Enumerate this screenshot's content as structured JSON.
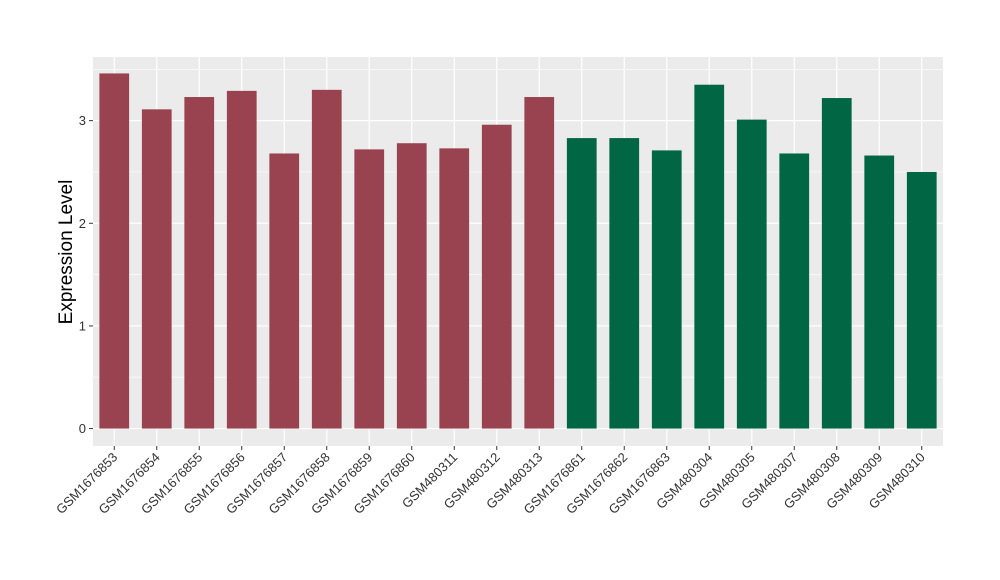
{
  "chart_data": {
    "type": "bar",
    "title": "",
    "xlabel": "",
    "ylabel": "Expression Level",
    "ylim": [
      -0.17,
      3.62
    ],
    "yticks": [
      0,
      1,
      2,
      3
    ],
    "grid": true,
    "categories": [
      "GSM1676853",
      "GSM1676854",
      "GSM1676855",
      "GSM1676856",
      "GSM1676857",
      "GSM1676858",
      "GSM1676859",
      "GSM1676860",
      "GSM480311",
      "GSM480312",
      "GSM480313",
      "GSM1676861",
      "GSM1676862",
      "GSM1676863",
      "GSM480304",
      "GSM480305",
      "GSM480307",
      "GSM480308",
      "GSM480309",
      "GSM480310"
    ],
    "values": [
      3.46,
      3.11,
      3.23,
      3.29,
      2.68,
      3.3,
      2.72,
      2.78,
      2.73,
      2.96,
      3.23,
      2.83,
      2.83,
      2.71,
      3.35,
      3.01,
      2.68,
      3.22,
      2.66,
      2.5
    ],
    "groups": [
      0,
      0,
      0,
      0,
      0,
      0,
      0,
      0,
      0,
      0,
      0,
      1,
      1,
      1,
      1,
      1,
      1,
      1,
      1,
      1
    ],
    "group_colors": [
      "#9a4350",
      "#006644"
    ],
    "panel_background": "#ebebeb"
  }
}
